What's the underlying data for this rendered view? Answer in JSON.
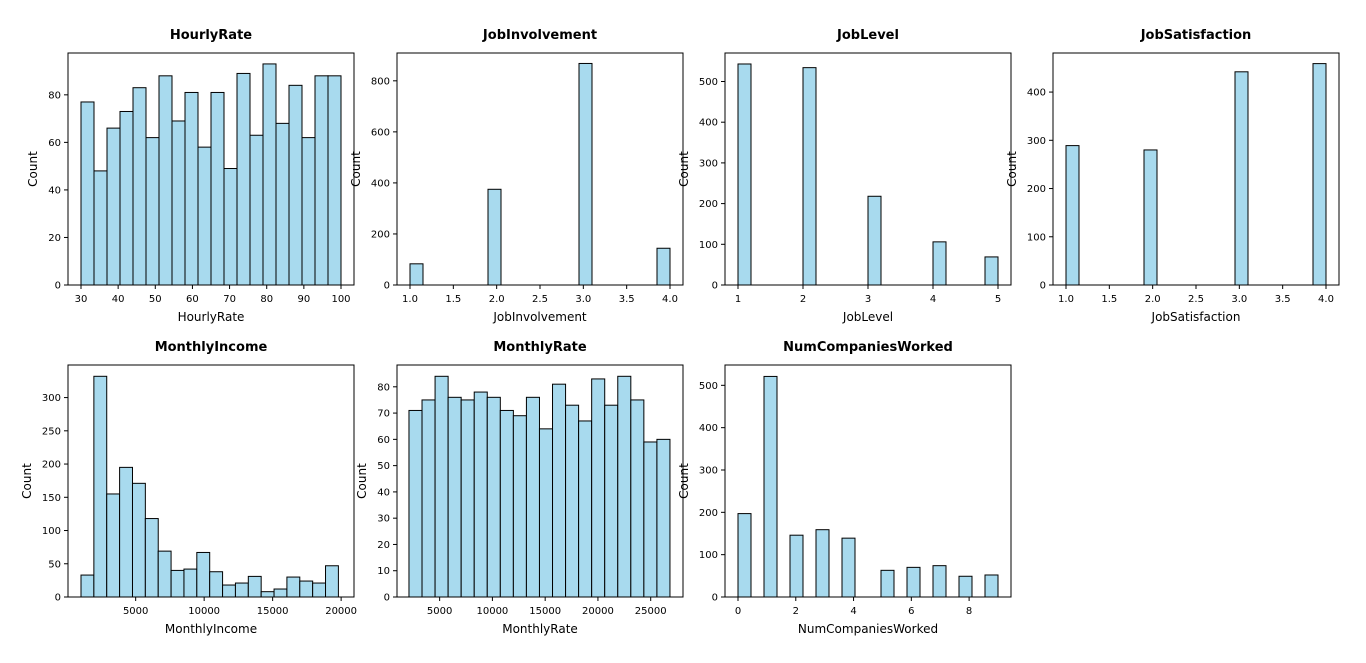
{
  "colors": {
    "bar_fill": "#a8daee",
    "bar_edge": "#000000"
  },
  "chart_data": [
    {
      "type": "bar",
      "title": "HourlyRate",
      "xlabel": "HourlyRate",
      "ylabel": "Count",
      "xlim": [
        26.5,
        103.5
      ],
      "ylim": [
        0,
        97.6
      ],
      "xticks": [
        30,
        40,
        50,
        60,
        70,
        80,
        90,
        100
      ],
      "yticks": [
        0,
        20,
        40,
        60,
        80
      ],
      "bins": [
        [
          30,
          33.5
        ],
        [
          33.5,
          37
        ],
        [
          37,
          40.5
        ],
        [
          40.5,
          44
        ],
        [
          44,
          47.5
        ],
        [
          47.5,
          51
        ],
        [
          51,
          54.5
        ],
        [
          54.5,
          58
        ],
        [
          58,
          61.5
        ],
        [
          61.5,
          65
        ],
        [
          65,
          68.5
        ],
        [
          68.5,
          72
        ],
        [
          72,
          75.5
        ],
        [
          75.5,
          79
        ],
        [
          79,
          82.5
        ],
        [
          82.5,
          86
        ],
        [
          86,
          89.5
        ],
        [
          89.5,
          93
        ],
        [
          93,
          96.5
        ],
        [
          96.5,
          100
        ]
      ],
      "values": [
        77,
        48,
        66,
        73,
        83,
        62,
        88,
        69,
        81,
        58,
        81,
        49,
        89,
        63,
        93,
        68,
        84,
        62,
        88,
        88
      ]
    },
    {
      "type": "bar",
      "title": "JobInvolvement",
      "xlabel": "JobInvolvement",
      "ylabel": "Count",
      "xlim": [
        0.85,
        4.15
      ],
      "ylim": [
        0,
        909
      ],
      "xticks": [
        1.0,
        1.5,
        2.0,
        2.5,
        3.0,
        3.5,
        4.0
      ],
      "xtick_labels": [
        "1.0",
        "1.5",
        "2.0",
        "2.5",
        "3.0",
        "3.5",
        "4.0"
      ],
      "yticks": [
        0,
        200,
        400,
        600,
        800
      ],
      "bins": [
        [
          1.0,
          1.15
        ],
        [
          1.9,
          2.05
        ],
        [
          2.95,
          3.1
        ],
        [
          3.85,
          4.0
        ]
      ],
      "values": [
        83,
        375,
        868,
        144
      ]
    },
    {
      "type": "bar",
      "title": "JobLevel",
      "xlabel": "JobLevel",
      "ylabel": "Count",
      "xlim": [
        0.8,
        5.2
      ],
      "ylim": [
        0,
        570
      ],
      "xticks": [
        1,
        2,
        3,
        4,
        5
      ],
      "yticks": [
        0,
        100,
        200,
        300,
        400,
        500
      ],
      "bins": [
        [
          1.0,
          1.2
        ],
        [
          2.0,
          2.2
        ],
        [
          3.0,
          3.2
        ],
        [
          4.0,
          4.2
        ],
        [
          4.8,
          5.0
        ]
      ],
      "values": [
        543,
        534,
        218,
        106,
        69
      ]
    },
    {
      "type": "bar",
      "title": "JobSatisfaction",
      "xlabel": "JobSatisfaction",
      "ylabel": "Count",
      "xlim": [
        0.85,
        4.15
      ],
      "ylim": [
        0,
        481
      ],
      "xticks": [
        1.0,
        1.5,
        2.0,
        2.5,
        3.0,
        3.5,
        4.0
      ],
      "xtick_labels": [
        "1.0",
        "1.5",
        "2.0",
        "2.5",
        "3.0",
        "3.5",
        "4.0"
      ],
      "yticks": [
        0,
        100,
        200,
        300,
        400
      ],
      "bins": [
        [
          1.0,
          1.15
        ],
        [
          1.9,
          2.05
        ],
        [
          2.95,
          3.1
        ],
        [
          3.85,
          4.0
        ]
      ],
      "values": [
        289,
        280,
        442,
        459
      ]
    },
    {
      "type": "bar",
      "title": "MonthlyIncome",
      "xlabel": "MonthlyIncome",
      "ylabel": "Count",
      "xlim": [
        60,
        20940
      ],
      "ylim": [
        0,
        349
      ],
      "xticks": [
        5000,
        10000,
        15000,
        20000
      ],
      "yticks": [
        0,
        50,
        100,
        150,
        200,
        250,
        300
      ],
      "bins": [
        [
          1009,
          1949
        ],
        [
          1949,
          2888
        ],
        [
          2888,
          3828
        ],
        [
          3828,
          4768
        ],
        [
          4768,
          5707
        ],
        [
          5707,
          6647
        ],
        [
          6647,
          7586
        ],
        [
          7586,
          8526
        ],
        [
          8526,
          9465
        ],
        [
          9465,
          10405
        ],
        [
          10405,
          11345
        ],
        [
          11345,
          12284
        ],
        [
          12284,
          13224
        ],
        [
          13224,
          14163
        ],
        [
          14163,
          15103
        ],
        [
          15103,
          16042
        ],
        [
          16042,
          16982
        ],
        [
          16982,
          17922
        ],
        [
          17922,
          18861
        ],
        [
          18861,
          19801
        ]
      ],
      "values": [
        33,
        332,
        155,
        195,
        171,
        118,
        69,
        40,
        42,
        67,
        38,
        18,
        21,
        31,
        8,
        12,
        30,
        24,
        21,
        47
      ]
    },
    {
      "type": "bar",
      "title": "MonthlyRate",
      "xlabel": "MonthlyRate",
      "ylabel": "Count",
      "xlim": [
        960,
        28060
      ],
      "ylim": [
        0,
        88.3
      ],
      "xticks": [
        5000,
        10000,
        15000,
        20000,
        25000
      ],
      "yticks": [
        0,
        10,
        20,
        30,
        40,
        50,
        60,
        70,
        80
      ],
      "bins": [
        [
          2094,
          3331
        ],
        [
          3331,
          4567
        ],
        [
          4567,
          5804
        ],
        [
          5804,
          7040
        ],
        [
          7040,
          8277
        ],
        [
          8277,
          9513
        ],
        [
          9513,
          10750
        ],
        [
          10750,
          11987
        ],
        [
          11987,
          13223
        ],
        [
          13223,
          14460
        ],
        [
          14460,
          15696
        ],
        [
          15696,
          16933
        ],
        [
          16933,
          18169
        ],
        [
          18169,
          19406
        ],
        [
          19406,
          20643
        ],
        [
          20643,
          21879
        ],
        [
          21879,
          23116
        ],
        [
          23116,
          24352
        ],
        [
          24352,
          25589
        ],
        [
          25589,
          26825
        ]
      ],
      "values": [
        71,
        75,
        84,
        76,
        75,
        78,
        76,
        71,
        69,
        76,
        64,
        81,
        73,
        67,
        83,
        73,
        84,
        75,
        59,
        60
      ]
    },
    {
      "type": "bar",
      "title": "NumCompaniesWorked",
      "xlabel": "NumCompaniesWorked",
      "ylabel": "Count",
      "xlim": [
        -0.45,
        9.45
      ],
      "ylim": [
        0,
        548
      ],
      "xticks": [
        0,
        2,
        4,
        6,
        8
      ],
      "yticks": [
        0,
        100,
        200,
        300,
        400,
        500
      ],
      "bins": [
        [
          0,
          0.45
        ],
        [
          0.9,
          1.35
        ],
        [
          1.8,
          2.25
        ],
        [
          2.7,
          3.15
        ],
        [
          3.6,
          4.05
        ],
        [
          4.95,
          5.4
        ],
        [
          5.85,
          6.3
        ],
        [
          6.75,
          7.2
        ],
        [
          7.65,
          8.1
        ],
        [
          8.55,
          9.0
        ]
      ],
      "values": [
        197,
        521,
        146,
        159,
        139,
        63,
        70,
        74,
        49,
        52
      ]
    }
  ]
}
